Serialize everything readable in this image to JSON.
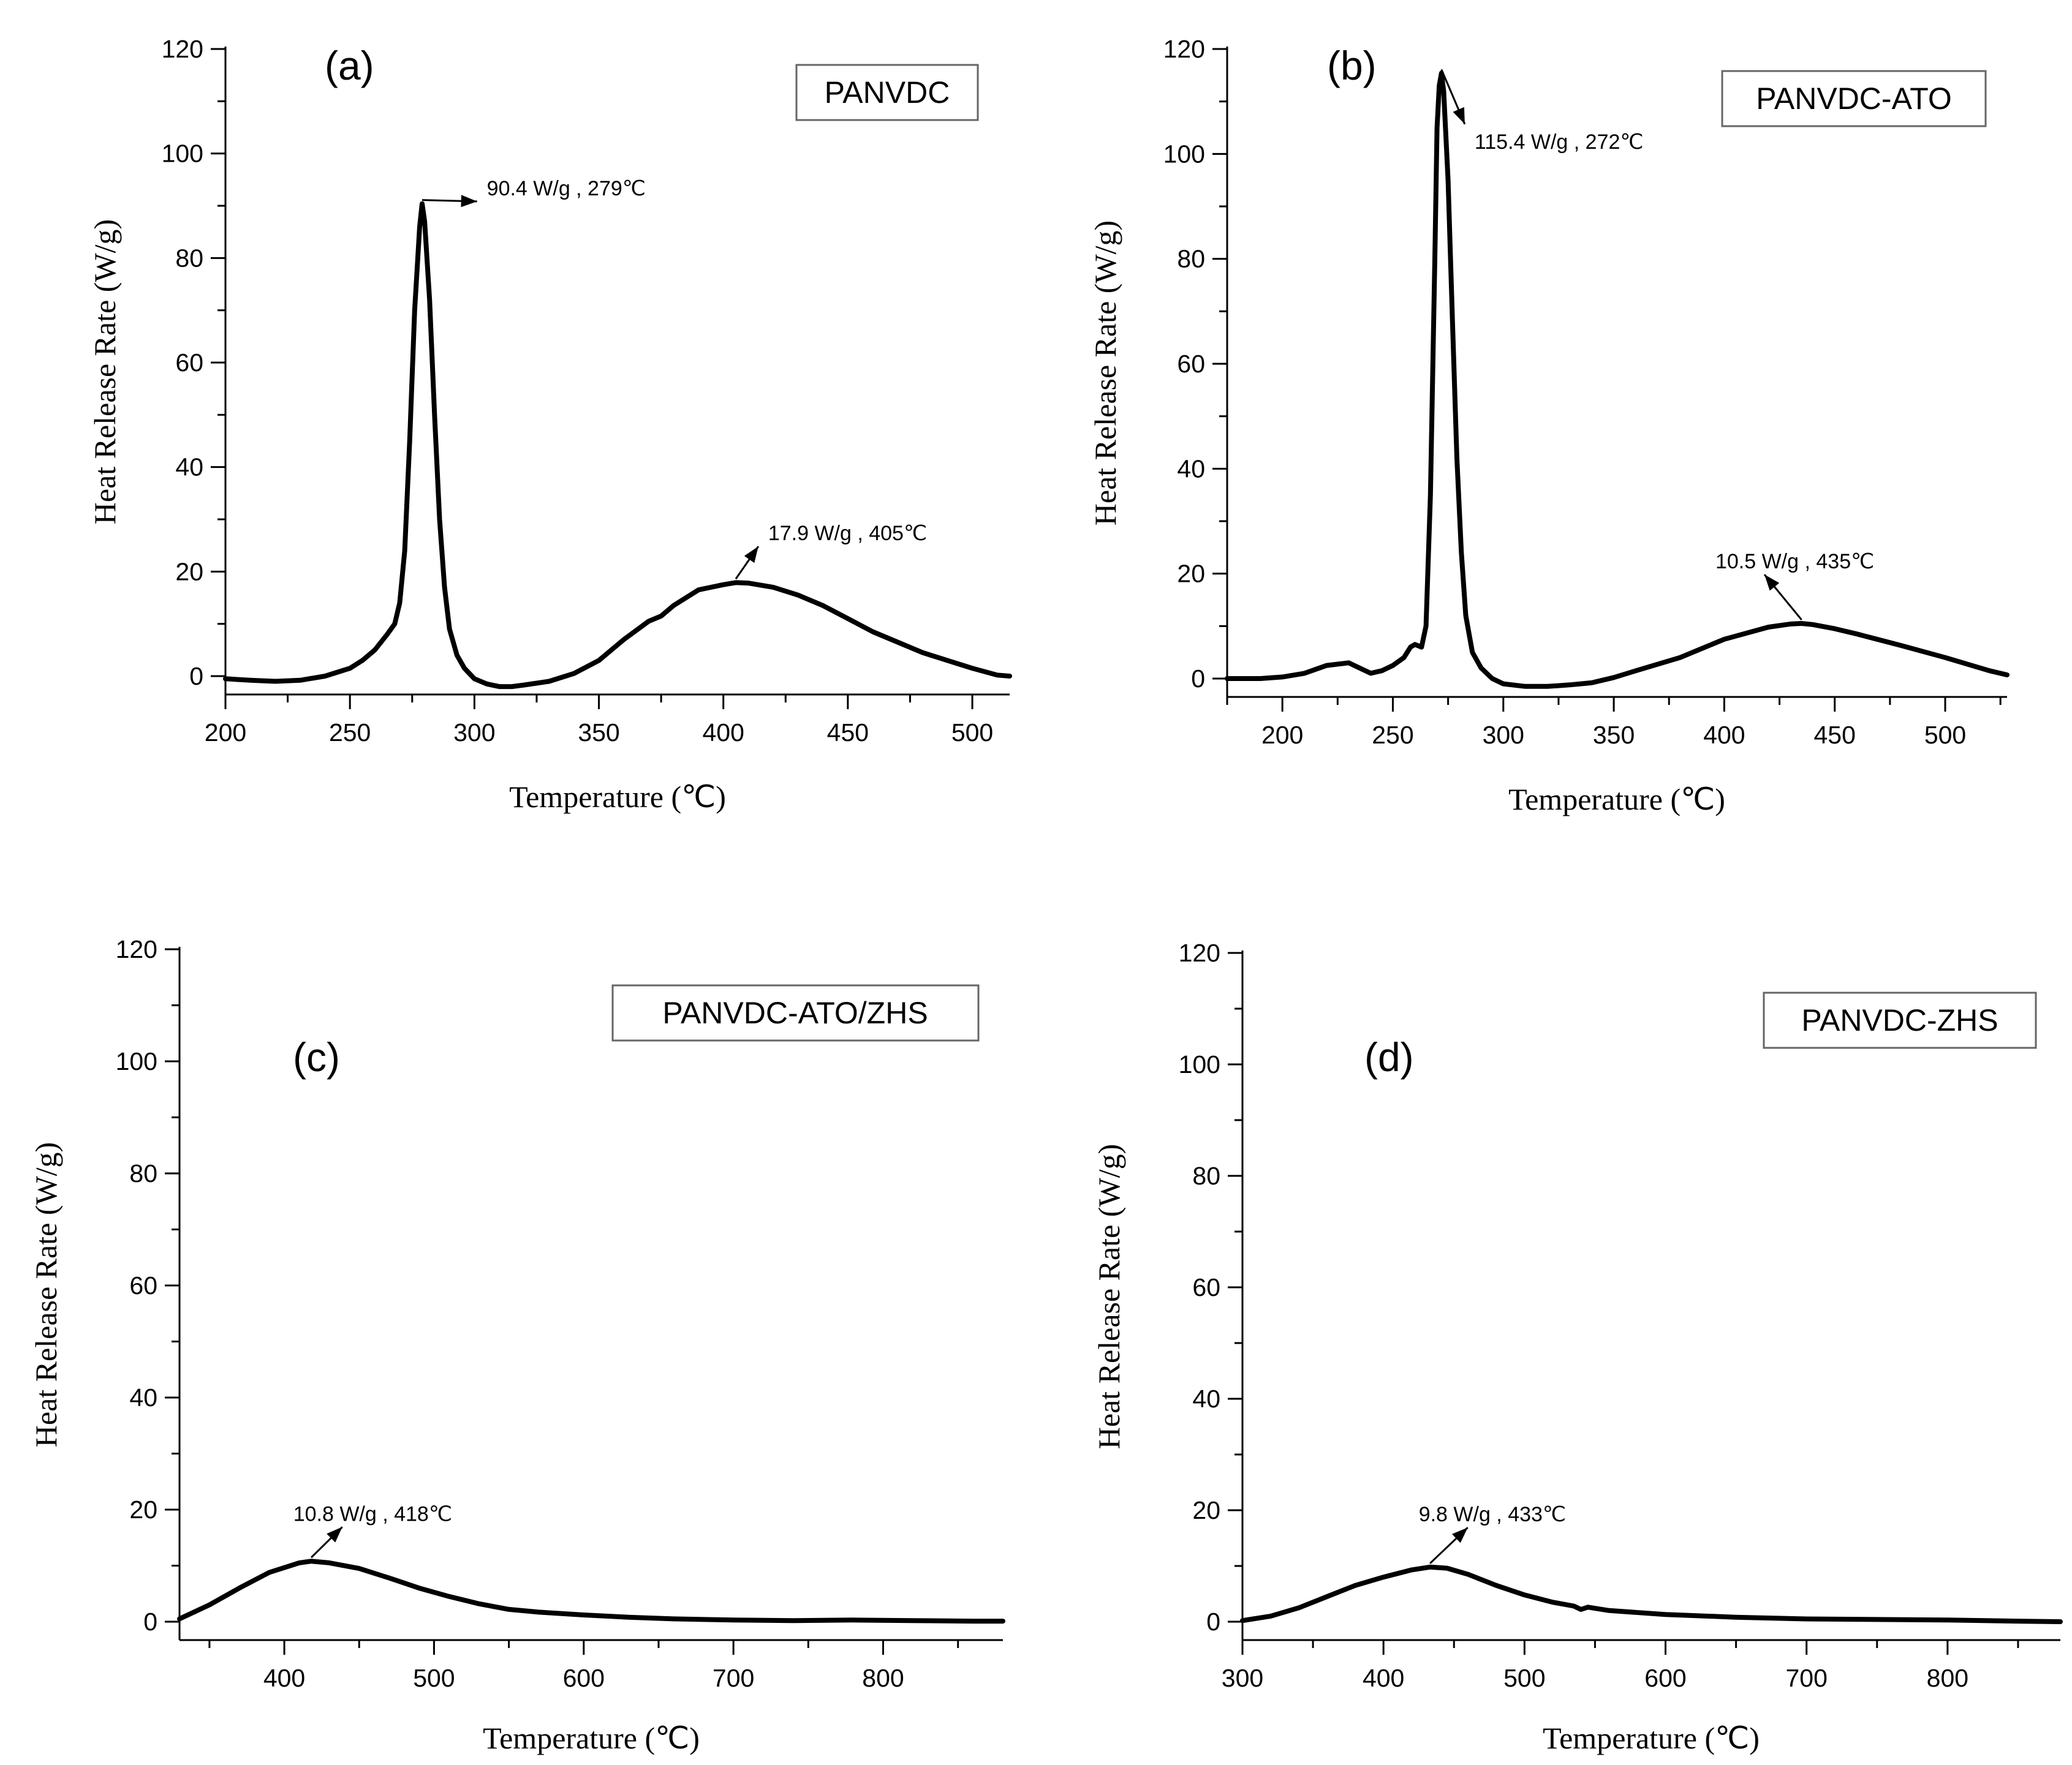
{
  "chart_data": [
    {
      "id": "a",
      "type": "line",
      "panel_label": "(a)",
      "legend": "PANVDC",
      "xlabel": "Temperature (℃)",
      "ylabel": "Heat Release Rate (W/g)",
      "xlim": [
        200,
        515
      ],
      "ylim": [
        0,
        120
      ],
      "xticks": [
        200,
        250,
        300,
        350,
        400,
        450,
        500
      ],
      "yticks": [
        0,
        20,
        40,
        60,
        80,
        100,
        120
      ],
      "x": [
        200,
        210,
        220,
        230,
        240,
        250,
        255,
        260,
        265,
        268,
        270,
        272,
        274,
        276,
        278,
        279,
        280,
        282,
        284,
        286,
        288,
        290,
        293,
        296,
        300,
        305,
        310,
        315,
        320,
        330,
        340,
        350,
        360,
        370,
        375,
        380,
        390,
        400,
        405,
        410,
        420,
        430,
        440,
        450,
        460,
        470,
        480,
        490,
        500,
        510,
        515
      ],
      "y": [
        -0.5,
        -0.8,
        -1,
        -0.8,
        0,
        1.5,
        3,
        5,
        8,
        10,
        14,
        24,
        45,
        70,
        86,
        90.4,
        87,
        72,
        50,
        30,
        17,
        9,
        4,
        1.5,
        -0.5,
        -1.5,
        -2,
        -2,
        -1.7,
        -1,
        0.5,
        3,
        7,
        10.5,
        11.5,
        13.5,
        16.5,
        17.5,
        17.9,
        17.8,
        17,
        15.5,
        13.5,
        11,
        8.5,
        6.5,
        4.5,
        3,
        1.5,
        0.2,
        0
      ],
      "annotations": [
        {
          "text": "90.4 W/g , 279℃",
          "x": 279,
          "y": 90.4,
          "tx": 305,
          "ty": 92
        },
        {
          "text": "17.9 W/g , 405℃",
          "x": 405,
          "y": 17.9,
          "tx": 418,
          "ty": 26
        }
      ]
    },
    {
      "id": "b",
      "type": "line",
      "panel_label": "(b)",
      "legend": "PANVDC-ATO",
      "xlabel": "Temperature (℃)",
      "ylabel": "Heat Release Rate (W/g)",
      "xlim": [
        175,
        528
      ],
      "ylim": [
        0,
        120
      ],
      "xticks": [
        200,
        250,
        300,
        350,
        400,
        450,
        500
      ],
      "yticks": [
        0,
        20,
        40,
        60,
        80,
        100,
        120
      ],
      "x": [
        175,
        190,
        200,
        210,
        220,
        230,
        235,
        240,
        245,
        250,
        255,
        258,
        260,
        263,
        265,
        267,
        269,
        270,
        271,
        272,
        273,
        275,
        277,
        279,
        281,
        283,
        286,
        290,
        295,
        300,
        310,
        320,
        330,
        340,
        350,
        360,
        380,
        400,
        420,
        430,
        435,
        440,
        450,
        460,
        480,
        500,
        520,
        528
      ],
      "y": [
        0,
        0,
        0.3,
        1,
        2.5,
        3,
        2,
        1,
        1.5,
        2.5,
        4,
        6,
        6.5,
        6,
        10,
        35,
        80,
        105,
        113,
        115.4,
        112,
        95,
        68,
        42,
        24,
        12,
        5,
        2,
        0,
        -1,
        -1.5,
        -1.5,
        -1.2,
        -0.8,
        0.2,
        1.5,
        4,
        7.5,
        9.8,
        10.4,
        10.5,
        10.3,
        9.5,
        8.5,
        6.3,
        4,
        1.5,
        0.7
      ],
      "annotations": [
        {
          "text": "115.4 W/g , 272℃",
          "x": 272,
          "y": 115.4,
          "tx": 287,
          "ty": 101
        },
        {
          "text": "10.5 W/g , 435℃",
          "x": 435,
          "y": 10.5,
          "tx": 396,
          "ty": 21
        }
      ]
    },
    {
      "id": "c",
      "type": "line",
      "panel_label": "(c)",
      "legend": "PANVDC-ATO/ZHS",
      "xlabel": "Temperature (℃)",
      "ylabel": "Heat Release Rate (W/g)",
      "xlim": [
        330,
        880
      ],
      "ylim": [
        0,
        120
      ],
      "xticks": [
        400,
        500,
        600,
        700,
        800
      ],
      "yticks": [
        0,
        20,
        40,
        60,
        80,
        100,
        120
      ],
      "x": [
        330,
        350,
        370,
        390,
        410,
        418,
        430,
        450,
        470,
        490,
        510,
        530,
        550,
        570,
        600,
        630,
        660,
        700,
        740,
        780,
        820,
        860,
        880
      ],
      "y": [
        0.5,
        3,
        6,
        8.8,
        10.5,
        10.8,
        10.5,
        9.5,
        7.8,
        6,
        4.5,
        3.2,
        2.2,
        1.7,
        1.2,
        0.8,
        0.5,
        0.3,
        0.2,
        0.3,
        0.2,
        0.1,
        0.1
      ],
      "annotations": [
        {
          "text": "10.8 W/g , 418℃",
          "x": 418,
          "y": 10.8,
          "tx": 406,
          "ty": 18
        }
      ]
    },
    {
      "id": "d",
      "type": "line",
      "panel_label": "(d)",
      "legend": "PANVDC-ZHS",
      "xlabel": "Temperature (℃)",
      "ylabel": "Heat Release Rate (W/g)",
      "xlim": [
        300,
        880
      ],
      "ylim": [
        0,
        120
      ],
      "xticks": [
        300,
        400,
        500,
        600,
        700,
        800
      ],
      "yticks": [
        0,
        20,
        40,
        60,
        80,
        100,
        120
      ],
      "x": [
        300,
        320,
        340,
        360,
        380,
        400,
        420,
        433,
        445,
        460,
        480,
        500,
        520,
        535,
        540,
        545,
        560,
        600,
        650,
        700,
        750,
        800,
        850,
        880
      ],
      "y": [
        0.2,
        1,
        2.5,
        4.5,
        6.5,
        8,
        9.3,
        9.8,
        9.6,
        8.5,
        6.5,
        4.8,
        3.5,
        2.8,
        2.2,
        2.6,
        2,
        1.3,
        0.8,
        0.5,
        0.4,
        0.3,
        0.1,
        0
      ],
      "annotations": [
        {
          "text": "9.8 W/g , 433℃",
          "x": 433,
          "y": 9.8,
          "tx": 425,
          "ty": 18
        }
      ]
    }
  ]
}
